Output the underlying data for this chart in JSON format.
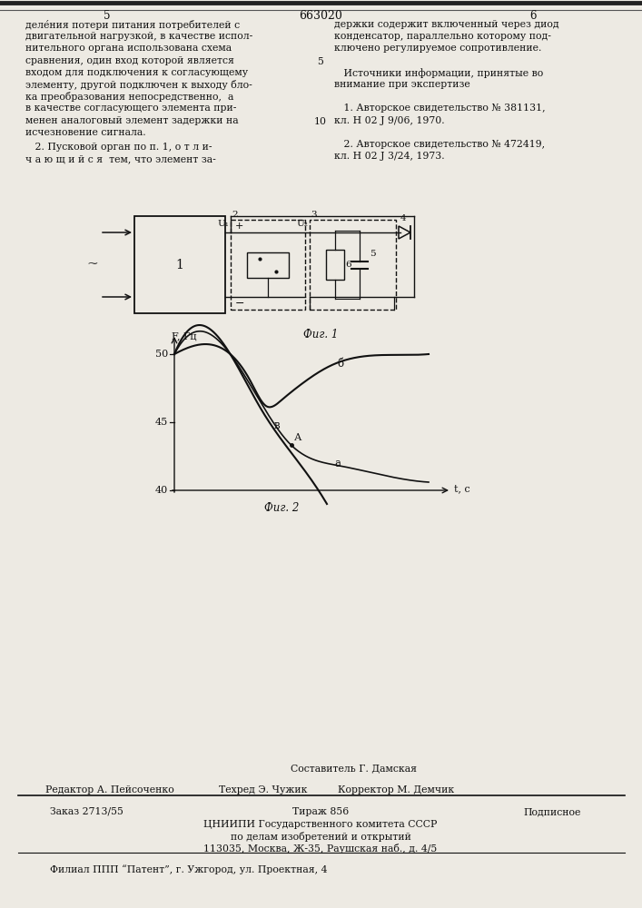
{
  "bg_color": "#eeebe4",
  "title_patent": "663020",
  "col_left": "5",
  "col_right": "6",
  "fig1_caption": "Фиг. 1",
  "fig2_caption": "Фиг. 2",
  "footer_line1": "Составитель Г. Дамская",
  "footer_editor": "Редактор А. Пейсоченко",
  "footer_tech": "Техред Э. Чужик",
  "footer_corrector": "Корректор М. Демчик",
  "footer_order": "Заказ 2713/55",
  "footer_tirazh": "Тираж 856",
  "footer_podpisnoe": "Подписное",
  "footer_org": "ЦНИИПИ Государственного комитета СССР",
  "footer_org2": "по делам изобретений и открытий",
  "footer_addr": "113035, Москва, Ж-35, Раушская наб., д. 4/5",
  "footer_filial": "Филиал ППП “Патент”, г. Ужгород, ул. Проектная, 4"
}
